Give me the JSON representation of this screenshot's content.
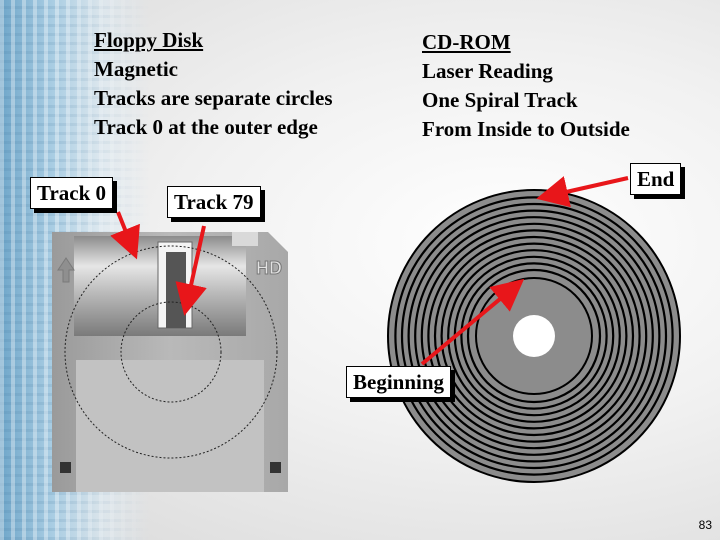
{
  "floppy": {
    "heading": "Floppy Disk",
    "lines": [
      "Magnetic",
      "Tracks are separate circles",
      "Track 0 at the outer edge"
    ]
  },
  "cdrom": {
    "heading": "CD-ROM",
    "lines": [
      "Laser Reading",
      "One Spiral Track",
      "From Inside to Outside"
    ]
  },
  "labels": {
    "track0": "Track 0",
    "track79": "Track 79",
    "end": "End",
    "beginning": "Beginning",
    "hd_mark": "HD"
  },
  "page_number": "83",
  "colors": {
    "arrow": "#e8161a",
    "disk": "#8a8a8a",
    "disk_dark": "#000000",
    "floppy_body": "#b5b5b5",
    "floppy_shutter": "#c9c9c9"
  }
}
